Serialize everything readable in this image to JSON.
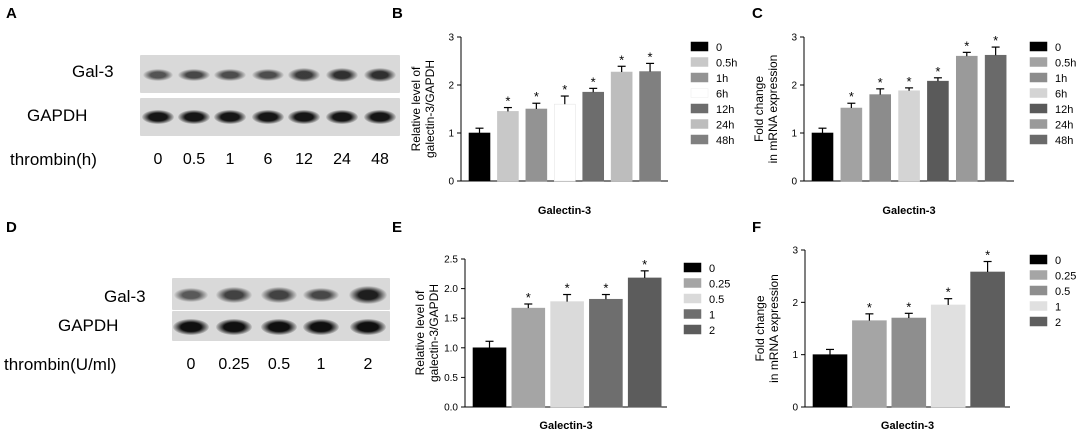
{
  "panel_labels": {
    "a": "A",
    "b": "B",
    "c": "C",
    "d": "D",
    "e": "E",
    "f": "F"
  },
  "blot_a": {
    "protein_label": "Gal-3",
    "control_label": "GAPDH",
    "treatment_label": "thrombin(h)",
    "lanes": [
      "0",
      "0.5",
      "1",
      "6",
      "12",
      "24",
      "48"
    ],
    "gal3_intensity": [
      0.55,
      0.65,
      0.6,
      0.6,
      0.75,
      0.85,
      0.85
    ],
    "gapdh_intensity": [
      0.9,
      0.9,
      0.9,
      0.9,
      0.9,
      0.9,
      0.9
    ]
  },
  "blot_d": {
    "protein_label": "Gal-3",
    "control_label": "GAPDH",
    "treatment_label": "thrombin(U/ml)",
    "lanes": [
      "0",
      "0.25",
      "0.5",
      "1",
      "2"
    ],
    "gal3_intensity": [
      0.5,
      0.7,
      0.7,
      0.65,
      1.0
    ],
    "gapdh_intensity": [
      0.95,
      0.95,
      0.95,
      0.95,
      0.95
    ]
  },
  "chart_data": [
    {
      "panel": "B",
      "type": "bar",
      "xlabel": "Galectin-3",
      "ylabel": "Relative level of galectin-3/GAPDH",
      "ylabel_lines": [
        "Relative level of",
        "galectin-3/GAPDH"
      ],
      "ylim": [
        0,
        3
      ],
      "yticks": [
        "0",
        "1",
        "2",
        "3"
      ],
      "grid": false,
      "legend_position": "right",
      "categories": [
        "0",
        "0.5h",
        "1h",
        "6h",
        "12h",
        "24h",
        "48h"
      ],
      "values": [
        1.0,
        1.45,
        1.5,
        1.6,
        1.85,
        2.27,
        2.28
      ],
      "errors": [
        0.1,
        0.08,
        0.12,
        0.17,
        0.08,
        0.12,
        0.17
      ],
      "significance": [
        "",
        "*",
        "*",
        "*",
        "*",
        "*",
        "*"
      ],
      "colors": [
        "#000000",
        "#c8c8c8",
        "#939393",
        "#ffffff",
        "#6d6d6d",
        "#bdbdbd",
        "#808080"
      ]
    },
    {
      "panel": "C",
      "type": "bar",
      "xlabel": "Galectin-3",
      "ylabel": "Fold change in mRNA expression",
      "ylabel_lines": [
        "Fold change",
        "in mRNA expression"
      ],
      "ylim": [
        0,
        3
      ],
      "yticks": [
        "0",
        "1",
        "2",
        "3"
      ],
      "grid": false,
      "legend_position": "right",
      "categories": [
        "0",
        "0.5h",
        "1h",
        "6h",
        "12h",
        "24h",
        "48h"
      ],
      "values": [
        1.0,
        1.52,
        1.8,
        1.88,
        2.08,
        2.6,
        2.62
      ],
      "errors": [
        0.1,
        0.1,
        0.12,
        0.06,
        0.07,
        0.08,
        0.17
      ],
      "significance": [
        "",
        "*",
        "*",
        "*",
        "*",
        "*",
        "*"
      ],
      "colors": [
        "#000000",
        "#a2a2a2",
        "#8c8c8c",
        "#d4d4d4",
        "#5a5a5a",
        "#9a9a9a",
        "#6a6a6a"
      ]
    },
    {
      "panel": "E",
      "type": "bar",
      "xlabel": "Galectin-3",
      "ylabel": "Relative level of galectin-3/GAPDH",
      "ylabel_lines": [
        "Relative level of",
        "galectin-3/GAPDH"
      ],
      "ylim": [
        0,
        2.5
      ],
      "yticks": [
        "0.0",
        "0.5",
        "1.0",
        "1.5",
        "2.0",
        "2.5"
      ],
      "grid": false,
      "legend_position": "right",
      "categories": [
        "0",
        "0.25",
        "0.5",
        "1",
        "2"
      ],
      "values": [
        1.0,
        1.67,
        1.78,
        1.82,
        2.18
      ],
      "errors": [
        0.11,
        0.07,
        0.12,
        0.08,
        0.12
      ],
      "significance": [
        "",
        "*",
        "*",
        "*",
        "*"
      ],
      "colors": [
        "#000000",
        "#a5a5a5",
        "#dadada",
        "#6e6e6e",
        "#5c5c5c"
      ]
    },
    {
      "panel": "F",
      "type": "bar",
      "xlabel": "Galectin-3",
      "ylabel": "Fold change in mRNA expression",
      "ylabel_lines": [
        "Fold change",
        "in mRNA expression"
      ],
      "ylim": [
        0,
        3
      ],
      "yticks": [
        "0",
        "1",
        "2",
        "3"
      ],
      "grid": false,
      "legend_position": "right",
      "categories": [
        "0",
        "0.25",
        "0.5",
        "1",
        "2"
      ],
      "values": [
        1.0,
        1.65,
        1.7,
        1.95,
        2.58
      ],
      "errors": [
        0.1,
        0.13,
        0.09,
        0.12,
        0.2
      ],
      "significance": [
        "",
        "*",
        "*",
        "*",
        "*"
      ],
      "colors": [
        "#000000",
        "#a5a5a5",
        "#8e8e8e",
        "#e0e0e0",
        "#5e5e5e"
      ]
    }
  ]
}
